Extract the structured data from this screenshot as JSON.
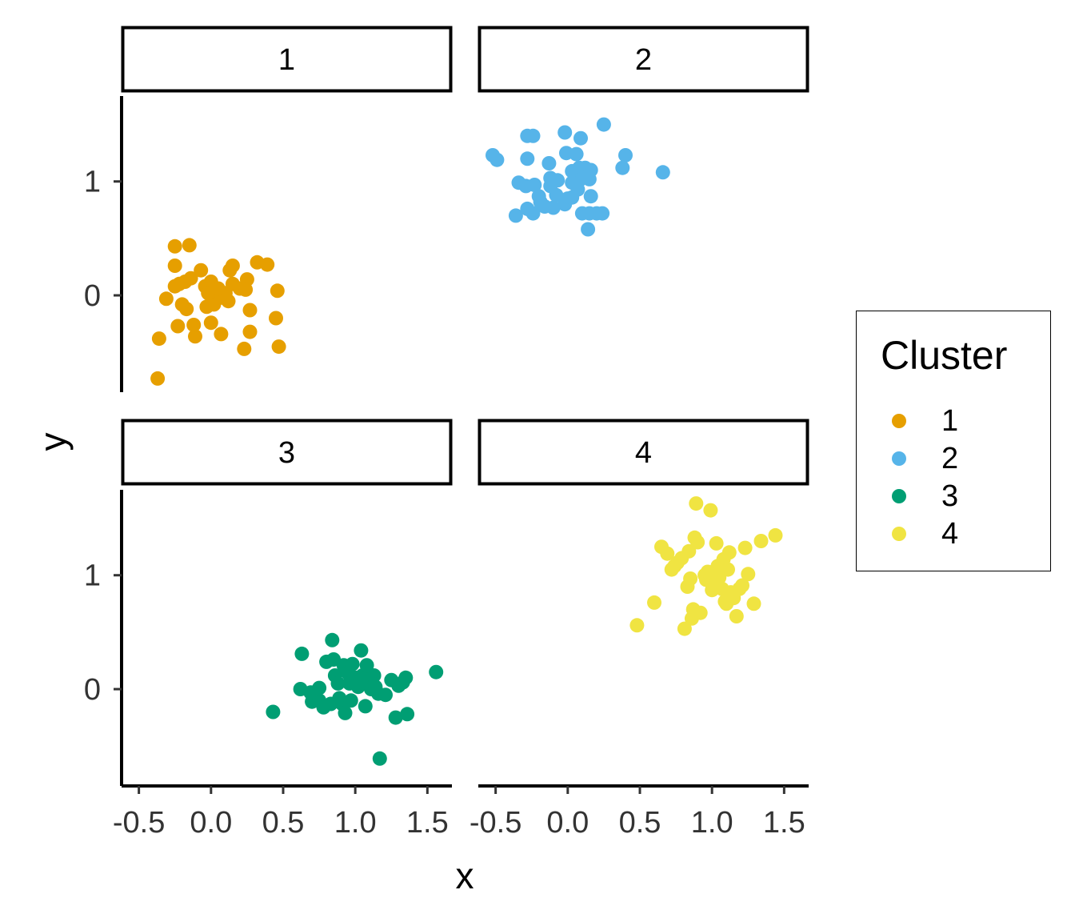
{
  "chart_data": {
    "type": "scatter",
    "xlabel": "x",
    "ylabel": "y",
    "xlim": [
      -0.62,
      1.67
    ],
    "ylim": [
      -0.85,
      1.75
    ],
    "x_ticks": [
      -0.5,
      0.0,
      0.5,
      1.0,
      1.5
    ],
    "x_tick_labels": [
      "-0.5",
      "0.0",
      "0.5",
      "1.0",
      "1.5"
    ],
    "y_ticks": [
      0,
      1
    ],
    "y_tick_labels": [
      "0",
      "1"
    ],
    "grid": false,
    "legend": {
      "title": "Cluster",
      "placement": "right",
      "entries": [
        "1",
        "2",
        "3",
        "4"
      ]
    },
    "facets": [
      {
        "strip_label": "1",
        "color": "#E69F00",
        "points": [
          [
            -0.25,
            0.43
          ],
          [
            -0.15,
            0.44
          ],
          [
            -0.25,
            0.26
          ],
          [
            -0.22,
            0.1
          ],
          [
            -0.18,
            0.12
          ],
          [
            -0.14,
            0.15
          ],
          [
            -0.07,
            0.22
          ],
          [
            -0.2,
            -0.08
          ],
          [
            -0.17,
            -0.12
          ],
          [
            -0.31,
            -0.03
          ],
          [
            -0.25,
            0.08
          ],
          [
            -0.12,
            -0.26
          ],
          [
            -0.23,
            -0.27
          ],
          [
            -0.11,
            -0.36
          ],
          [
            -0.36,
            -0.38
          ],
          [
            -0.37,
            -0.73
          ],
          [
            -0.04,
            0.08
          ],
          [
            0.0,
            0.12
          ],
          [
            0.02,
            0.05
          ],
          [
            0.04,
            0.0
          ],
          [
            0.06,
            0.02
          ],
          [
            -0.03,
            -0.1
          ],
          [
            0.02,
            -0.08
          ],
          [
            0.08,
            -0.02
          ],
          [
            0.1,
            0.02
          ],
          [
            0.12,
            -0.05
          ],
          [
            0.15,
            0.1
          ],
          [
            0.2,
            0.06
          ],
          [
            0.13,
            0.22
          ],
          [
            0.15,
            0.26
          ],
          [
            0.25,
            0.14
          ],
          [
            0.24,
            0.05
          ],
          [
            0.32,
            0.29
          ],
          [
            0.39,
            0.27
          ],
          [
            0.46,
            0.04
          ],
          [
            0.27,
            -0.13
          ],
          [
            0.27,
            -0.32
          ],
          [
            0.45,
            -0.2
          ],
          [
            0.47,
            -0.45
          ],
          [
            0.23,
            -0.47
          ],
          [
            0.07,
            -0.34
          ],
          [
            0.0,
            -0.24
          ],
          [
            -0.02,
            0.02
          ],
          [
            0.05,
            0.06
          ]
        ]
      },
      {
        "strip_label": "2",
        "color": "#56B4E9",
        "points": [
          [
            -0.52,
            1.23
          ],
          [
            -0.49,
            1.19
          ],
          [
            -0.28,
            1.4
          ],
          [
            -0.24,
            1.4
          ],
          [
            -0.02,
            1.43
          ],
          [
            0.09,
            1.38
          ],
          [
            0.25,
            1.5
          ],
          [
            0.4,
            1.23
          ],
          [
            0.66,
            1.08
          ],
          [
            0.38,
            1.12
          ],
          [
            -0.28,
            1.2
          ],
          [
            -0.13,
            1.16
          ],
          [
            -0.01,
            1.25
          ],
          [
            0.06,
            1.24
          ],
          [
            0.03,
            1.09
          ],
          [
            0.08,
            1.12
          ],
          [
            0.12,
            1.12
          ],
          [
            0.16,
            1.1
          ],
          [
            0.15,
            1.02
          ],
          [
            0.08,
            1.01
          ],
          [
            0.16,
            0.87
          ],
          [
            0.07,
            0.93
          ],
          [
            0.0,
            0.85
          ],
          [
            -0.02,
            0.8
          ],
          [
            0.03,
            0.86
          ],
          [
            0.1,
            0.72
          ],
          [
            0.14,
            0.58
          ],
          [
            0.15,
            0.72
          ],
          [
            0.2,
            0.72
          ],
          [
            0.24,
            0.72
          ],
          [
            -0.36,
            0.7
          ],
          [
            -0.28,
            0.76
          ],
          [
            -0.24,
            0.72
          ],
          [
            -0.19,
            0.82
          ],
          [
            -0.16,
            0.78
          ],
          [
            -0.1,
            0.77
          ],
          [
            -0.08,
            0.88
          ],
          [
            -0.12,
            0.96
          ],
          [
            -0.07,
            1.01
          ],
          [
            -0.12,
            1.03
          ],
          [
            -0.2,
            0.87
          ],
          [
            -0.23,
            0.97
          ],
          [
            -0.29,
            0.96
          ],
          [
            -0.34,
            0.99
          ],
          [
            0.03,
            0.99
          ]
        ]
      },
      {
        "strip_label": "3",
        "color": "#009E73",
        "points": [
          [
            0.43,
            -0.2
          ],
          [
            0.62,
            0.0
          ],
          [
            0.63,
            0.31
          ],
          [
            0.69,
            -0.03
          ],
          [
            0.7,
            -0.11
          ],
          [
            0.75,
            -0.1
          ],
          [
            0.75,
            0.01
          ],
          [
            0.78,
            -0.16
          ],
          [
            0.8,
            0.24
          ],
          [
            0.83,
            -0.13
          ],
          [
            0.84,
            0.43
          ],
          [
            0.85,
            0.26
          ],
          [
            0.86,
            0.12
          ],
          [
            0.88,
            0.05
          ],
          [
            0.89,
            -0.08
          ],
          [
            0.91,
            -0.13
          ],
          [
            0.92,
            0.21
          ],
          [
            0.93,
            -0.21
          ],
          [
            0.95,
            0.14
          ],
          [
            0.97,
            -0.1
          ],
          [
            0.98,
            0.22
          ],
          [
            1.0,
            0.1
          ],
          [
            1.02,
            0.02
          ],
          [
            1.04,
            0.34
          ],
          [
            1.05,
            0.12
          ],
          [
            1.06,
            0.05
          ],
          [
            1.07,
            -0.15
          ],
          [
            1.08,
            0.21
          ],
          [
            1.1,
            0.05
          ],
          [
            1.11,
            0.0
          ],
          [
            1.13,
            0.12
          ],
          [
            1.14,
            0.02
          ],
          [
            1.16,
            -0.04
          ],
          [
            1.17,
            -0.61
          ],
          [
            1.21,
            -0.05
          ],
          [
            1.25,
            0.08
          ],
          [
            1.28,
            -0.25
          ],
          [
            1.3,
            0.03
          ],
          [
            1.33,
            0.06
          ],
          [
            1.35,
            0.1
          ],
          [
            1.36,
            -0.22
          ],
          [
            1.56,
            0.15
          ],
          [
            0.96,
            0.05
          ],
          [
            1.04,
            0.08
          ]
        ]
      },
      {
        "strip_label": "4",
        "color": "#F0E442",
        "points": [
          [
            0.48,
            0.56
          ],
          [
            0.6,
            0.76
          ],
          [
            0.65,
            1.25
          ],
          [
            0.69,
            1.19
          ],
          [
            0.72,
            1.05
          ],
          [
            0.74,
            1.08
          ],
          [
            0.76,
            1.11
          ],
          [
            0.79,
            1.15
          ],
          [
            0.81,
            0.53
          ],
          [
            0.83,
            0.9
          ],
          [
            0.84,
            1.21
          ],
          [
            0.85,
            0.97
          ],
          [
            0.86,
            0.62
          ],
          [
            0.87,
            0.7
          ],
          [
            0.88,
            1.33
          ],
          [
            0.89,
            1.63
          ],
          [
            0.9,
            1.29
          ],
          [
            0.92,
            0.67
          ],
          [
            0.95,
            1.0
          ],
          [
            0.96,
            0.96
          ],
          [
            0.97,
            1.03
          ],
          [
            0.99,
            1.57
          ],
          [
            1.0,
            0.87
          ],
          [
            1.02,
            0.92
          ],
          [
            1.03,
            1.28
          ],
          [
            1.04,
            1.08
          ],
          [
            1.05,
            0.98
          ],
          [
            1.06,
            1.03
          ],
          [
            1.07,
            0.88
          ],
          [
            1.08,
            1.14
          ],
          [
            1.09,
            0.77
          ],
          [
            1.1,
            0.75
          ],
          [
            1.12,
            1.2
          ],
          [
            1.13,
            0.85
          ],
          [
            1.15,
            0.8
          ],
          [
            1.17,
            0.64
          ],
          [
            1.19,
            0.88
          ],
          [
            1.21,
            0.91
          ],
          [
            1.23,
            1.24
          ],
          [
            1.25,
            1.01
          ],
          [
            1.29,
            0.75
          ],
          [
            1.34,
            1.3
          ],
          [
            1.44,
            1.35
          ],
          [
            1.11,
            1.05
          ]
        ]
      }
    ]
  }
}
